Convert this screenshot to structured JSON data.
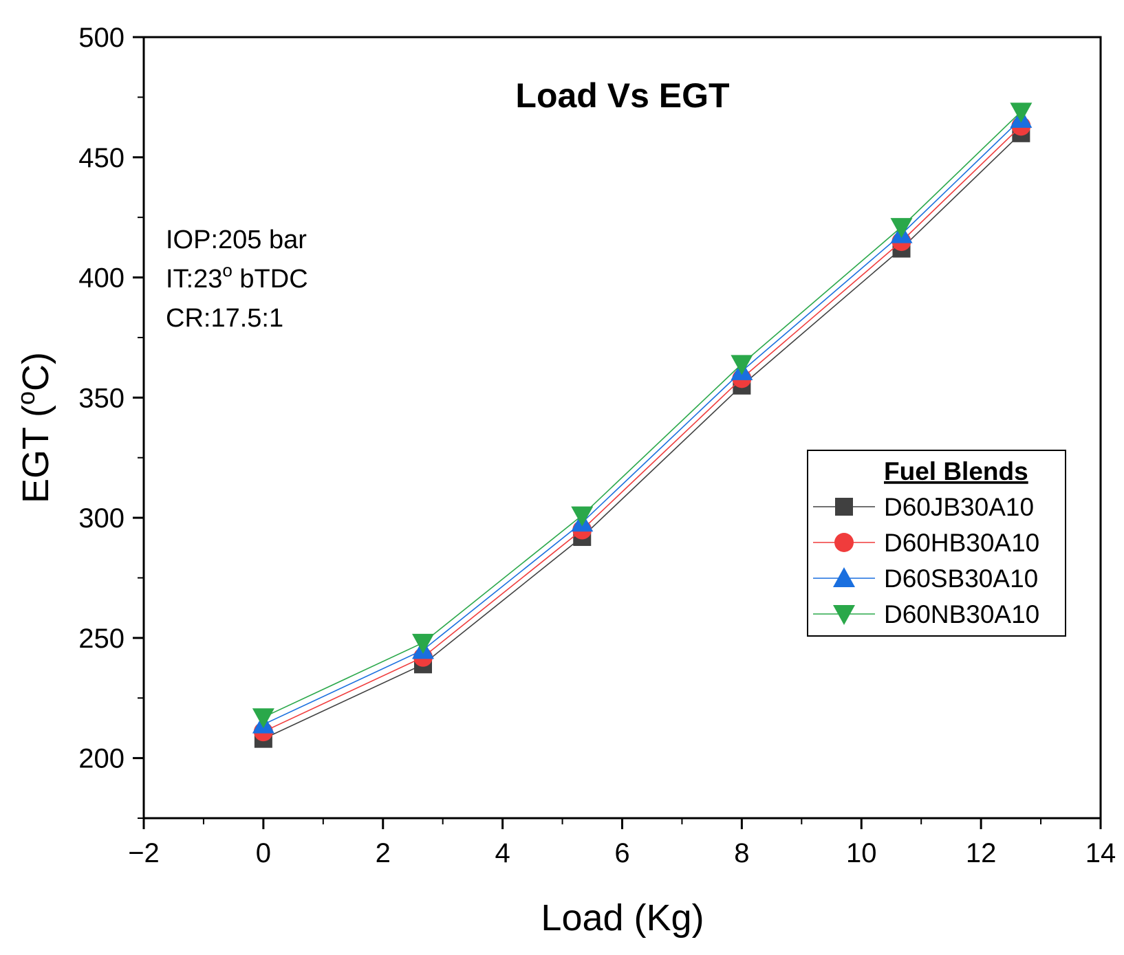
{
  "chart_data": {
    "type": "line",
    "title": "Load Vs EGT",
    "xlabel": "Load (Kg)",
    "ylabel_main": "EGT (",
    "ylabel_super": "o",
    "ylabel_tail": "C)",
    "xlim": [
      -2,
      14
    ],
    "ylim": [
      175,
      500
    ],
    "x_ticks": [
      -2,
      0,
      2,
      4,
      6,
      8,
      10,
      12,
      14
    ],
    "x_tick_labels": [
      "−2",
      "0",
      "2",
      "4",
      "6",
      "8",
      "10",
      "12",
      "14"
    ],
    "y_ticks": [
      200,
      250,
      300,
      350,
      400,
      450,
      500
    ],
    "y_tick_labels": [
      "200",
      "250",
      "300",
      "350",
      "400",
      "450",
      "500"
    ],
    "x": [
      0,
      2.67,
      5.33,
      8,
      10.67,
      12.67
    ],
    "series": [
      {
        "name": "D60JB30A10",
        "marker": "square",
        "color": "#404040",
        "values": [
          208,
          239,
          292,
          355,
          412,
          460
        ]
      },
      {
        "name": "D60HB30A10",
        "marker": "circle",
        "color": "#f03c3c",
        "values": [
          211,
          242,
          295,
          358,
          415,
          463
        ]
      },
      {
        "name": "D60SB30A10",
        "marker": "triangle-up",
        "color": "#1a6fdf",
        "values": [
          214,
          245,
          298,
          361,
          418,
          466
        ]
      },
      {
        "name": "D60NB30A10",
        "marker": "triangle-down",
        "color": "#2aa84a",
        "values": [
          217,
          248,
          301,
          364,
          421,
          469
        ]
      }
    ],
    "legend": {
      "title": "Fuel Blends",
      "position": "right"
    },
    "annotations": {
      "line1": "IOP:205 bar",
      "line2_main": "IT:23",
      "line2_super": "o",
      "line2_tail": " bTDC",
      "line3": "CR:17.5:1"
    }
  }
}
